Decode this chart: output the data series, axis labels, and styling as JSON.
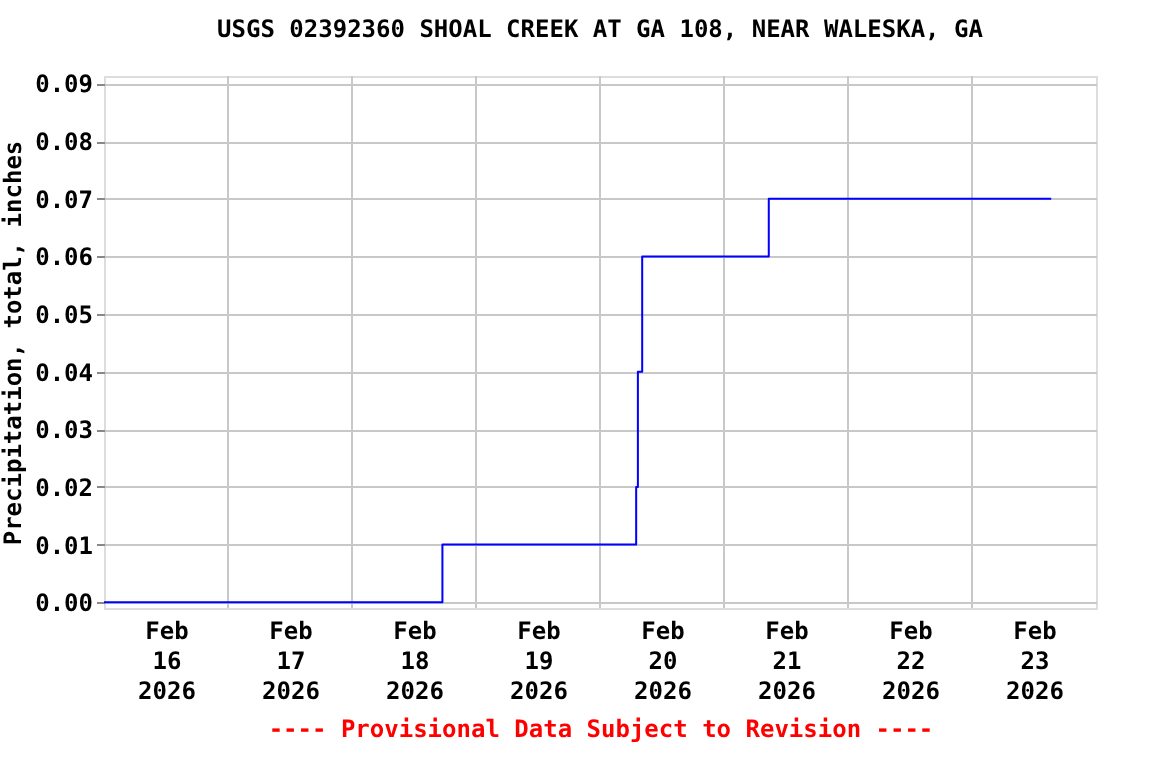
{
  "chart_data": {
    "type": "step",
    "title": "USGS 02392360 SHOAL CREEK AT GA 108, NEAR WALESKA, GA",
    "ylabel": "Precipitation, total, inches",
    "x": [
      "2026-02-16T00:00",
      "2026-02-18T17:30",
      "2026-02-20T07:00",
      "2026-02-20T07:20",
      "2026-02-20T08:10",
      "2026-02-21T08:40",
      "2026-02-23T15:20"
    ],
    "series": [
      {
        "color": "#0000ff",
        "values": [
          0.0,
          0.01,
          0.02,
          0.04,
          0.06,
          0.07,
          0.07
        ]
      }
    ],
    "xlim": [
      "2026-02-16T00:00",
      "2026-02-24T00:00"
    ],
    "xticks": [
      {
        "value": "2026-02-16T12:00",
        "label": "Feb 16 2026"
      },
      {
        "value": "2026-02-17T12:00",
        "label": "Feb 17 2026"
      },
      {
        "value": "2026-02-18T12:00",
        "label": "Feb 18 2026"
      },
      {
        "value": "2026-02-19T12:00",
        "label": "Feb 19 2026"
      },
      {
        "value": "2026-02-20T12:00",
        "label": "Feb 20 2026"
      },
      {
        "value": "2026-02-21T12:00",
        "label": "Feb 21 2026"
      },
      {
        "value": "2026-02-22T12:00",
        "label": "Feb 22 2026"
      },
      {
        "value": "2026-02-23T12:00",
        "label": "Feb 23 2026"
      },
      {
        "value": "2026-02-17T00:00",
        "label": null
      },
      {
        "value": "2026-02-18T00:00",
        "label": null
      },
      {
        "value": "2026-02-19T00:00",
        "label": null
      },
      {
        "value": "2026-02-20T00:00",
        "label": null
      },
      {
        "value": "2026-02-21T00:00",
        "label": null
      },
      {
        "value": "2026-02-22T00:00",
        "label": null
      },
      {
        "value": "2026-02-23T00:00",
        "label": null
      }
    ],
    "ylim": [
      -0.001,
      0.0913
    ],
    "yticks": [
      {
        "value": 0,
        "label": "0.00"
      },
      {
        "value": 0.01,
        "label": "0.01"
      },
      {
        "value": 0.02,
        "label": "0.02"
      },
      {
        "value": 0.03,
        "label": "0.03"
      },
      {
        "value": 0.04,
        "label": "0.04"
      },
      {
        "value": 0.05,
        "label": "0.05"
      },
      {
        "value": 0.06,
        "label": "0.06"
      },
      {
        "value": 0.07,
        "label": "0.07"
      },
      {
        "value": 0.08,
        "label": "0.08"
      },
      {
        "value": 0.09,
        "label": "0.09"
      }
    ],
    "grid": true,
    "legend": false,
    "annotations": [
      "---- Provisional Data Subject to Revision ----"
    ]
  }
}
